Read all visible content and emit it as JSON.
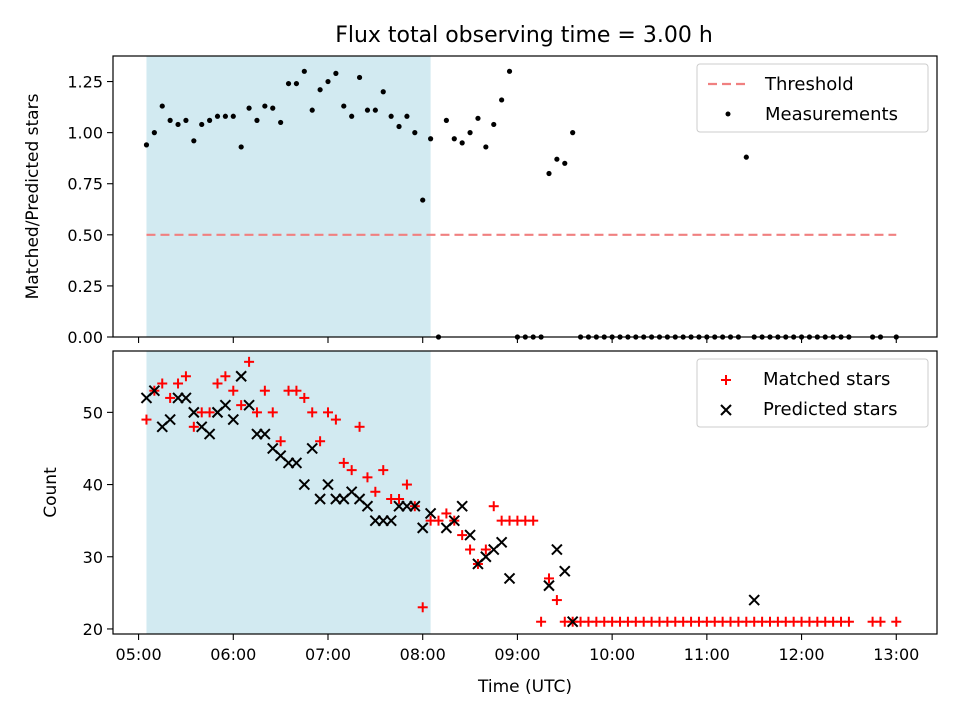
{
  "chart_data": {
    "title": "Flux total observing time = 3.00 h",
    "xlabel": "Time (UTC)",
    "x_range_hours": [
      4.73,
      13.43
    ],
    "x_ticks": [
      "05:00",
      "06:00",
      "07:00",
      "08:00",
      "09:00",
      "10:00",
      "11:00",
      "12:00",
      "13:00"
    ],
    "shaded_span": {
      "start": "05:05",
      "end": "08:05",
      "color": "#add8e6"
    },
    "panels": [
      {
        "type": "scatter",
        "ylabel": "Matched/Predicted stars",
        "ylim": [
          0,
          1.375
        ],
        "yticks": [
          "0.00",
          "0.25",
          "0.50",
          "0.75",
          "1.00",
          "1.25"
        ],
        "threshold": {
          "name": "Threshold",
          "value": 0.5,
          "x_start": "05:05",
          "x_end": "13:00",
          "color": "#f08080"
        },
        "legend": {
          "position": "top-right",
          "entries": [
            "Threshold",
            "Measurements"
          ]
        },
        "series": [
          {
            "name": "Measurements",
            "color": "#000000",
            "x": [
              "05:05",
              "05:10",
              "05:15",
              "05:20",
              "05:25",
              "05:30",
              "05:35",
              "05:40",
              "05:45",
              "05:50",
              "05:55",
              "06:00",
              "06:05",
              "06:10",
              "06:15",
              "06:20",
              "06:25",
              "06:30",
              "06:35",
              "06:40",
              "06:45",
              "06:50",
              "06:55",
              "07:00",
              "07:05",
              "07:10",
              "07:15",
              "07:20",
              "07:25",
              "07:30",
              "07:35",
              "07:40",
              "07:45",
              "07:50",
              "07:55",
              "08:00",
              "08:05",
              "08:10",
              "08:15",
              "08:20",
              "08:25",
              "08:30",
              "08:35",
              "08:40",
              "08:45",
              "08:50",
              "08:55",
              "09:00",
              "09:05",
              "09:10",
              "09:15",
              "09:20",
              "09:25",
              "09:30",
              "09:35",
              "09:40",
              "09:45",
              "09:50",
              "09:55",
              "10:00",
              "10:05",
              "10:10",
              "10:15",
              "10:20",
              "10:25",
              "10:30",
              "10:35",
              "10:40",
              "10:45",
              "10:50",
              "10:55",
              "11:00",
              "11:05",
              "11:10",
              "11:15",
              "11:20",
              "11:25",
              "11:30",
              "11:35",
              "11:40",
              "11:45",
              "11:50",
              "11:55",
              "12:00",
              "12:05",
              "12:10",
              "12:15",
              "12:20",
              "12:25",
              "12:30",
              "12:45",
              "12:50",
              "13:00"
            ],
            "y": [
              0.94,
              1.0,
              1.13,
              1.06,
              1.04,
              1.06,
              0.96,
              1.04,
              1.06,
              1.08,
              1.08,
              1.08,
              0.93,
              1.12,
              1.06,
              1.13,
              1.12,
              1.05,
              1.24,
              1.24,
              1.3,
              1.11,
              1.21,
              1.25,
              1.29,
              1.13,
              1.08,
              1.27,
              1.11,
              1.11,
              1.2,
              1.08,
              1.03,
              1.08,
              1.0,
              0.67,
              0.97,
              0.0,
              1.06,
              0.97,
              0.95,
              1.0,
              1.07,
              0.93,
              1.04,
              1.16,
              1.3,
              0.0,
              0.0,
              0.0,
              0.0,
              0.8,
              0.87,
              0.85,
              1.0,
              0.0,
              0.0,
              0.0,
              0.0,
              0.0,
              0.0,
              0.0,
              0.0,
              0.0,
              0.0,
              0.0,
              0.0,
              0.0,
              0.0,
              0.0,
              0.0,
              0.0,
              0.0,
              0.0,
              0.0,
              0.0,
              0.88,
              0.0,
              0.0,
              0.0,
              0.0,
              0.0,
              0.0,
              0.0,
              0.0,
              0.0,
              0.0,
              0.0,
              0.0,
              0.0,
              0.0,
              0.0,
              0.0
            ]
          }
        ]
      },
      {
        "type": "scatter",
        "ylabel": "Count",
        "ylim": [
          19.3,
          58.5
        ],
        "yticks": [
          "20",
          "30",
          "40",
          "50"
        ],
        "legend": {
          "position": "top-right",
          "entries": [
            "Matched stars",
            "Predicted stars"
          ]
        },
        "series": [
          {
            "name": "Matched stars",
            "marker": "+",
            "color": "#ff0000",
            "x": [
              "05:05",
              "05:10",
              "05:15",
              "05:20",
              "05:25",
              "05:30",
              "05:35",
              "05:40",
              "05:45",
              "05:50",
              "05:55",
              "06:00",
              "06:05",
              "06:10",
              "06:15",
              "06:20",
              "06:25",
              "06:30",
              "06:35",
              "06:40",
              "06:45",
              "06:50",
              "06:55",
              "07:00",
              "07:05",
              "07:10",
              "07:15",
              "07:20",
              "07:25",
              "07:30",
              "07:35",
              "07:40",
              "07:45",
              "07:50",
              "07:55",
              "08:00",
              "08:05",
              "08:10",
              "08:15",
              "08:20",
              "08:25",
              "08:30",
              "08:35",
              "08:40",
              "08:45",
              "08:50",
              "08:55",
              "09:00",
              "09:05",
              "09:10",
              "09:15",
              "09:20",
              "09:25",
              "09:30",
              "09:35",
              "09:40",
              "09:45",
              "09:50",
              "09:55",
              "10:00",
              "10:05",
              "10:10",
              "10:15",
              "10:20",
              "10:25",
              "10:30",
              "10:35",
              "10:40",
              "10:45",
              "10:50",
              "10:55",
              "11:00",
              "11:05",
              "11:10",
              "11:15",
              "11:20",
              "11:25",
              "11:30",
              "11:35",
              "11:40",
              "11:45",
              "11:50",
              "11:55",
              "12:00",
              "12:05",
              "12:10",
              "12:15",
              "12:20",
              "12:25",
              "12:30",
              "12:45",
              "12:50",
              "13:00"
            ],
            "y": [
              49,
              53,
              54,
              52,
              54,
              55,
              48,
              50,
              50,
              54,
              55,
              53,
              51,
              57,
              50,
              53,
              50,
              46,
              53,
              53,
              52,
              50,
              46,
              50,
              49,
              43,
              42,
              48,
              41,
              39,
              42,
              38,
              38,
              40,
              37,
              23,
              35,
              35,
              36,
              35,
              33,
              31,
              29,
              31,
              37,
              35,
              35,
              35,
              35,
              35,
              21,
              27,
              24,
              21,
              21,
              21,
              21,
              21,
              21,
              21,
              21,
              21,
              21,
              21,
              21,
              21,
              21,
              21,
              21,
              21,
              21,
              21,
              21,
              21,
              21,
              21,
              21,
              21,
              21,
              21,
              21,
              21,
              21,
              21,
              21,
              21,
              21,
              21,
              21,
              21,
              21,
              21,
              21
            ]
          },
          {
            "name": "Predicted stars",
            "marker": "x",
            "color": "#000000",
            "x": [
              "05:05",
              "05:10",
              "05:15",
              "05:20",
              "05:25",
              "05:30",
              "05:35",
              "05:40",
              "05:45",
              "05:50",
              "05:55",
              "06:00",
              "06:05",
              "06:10",
              "06:15",
              "06:20",
              "06:25",
              "06:30",
              "06:35",
              "06:40",
              "06:45",
              "06:50",
              "06:55",
              "07:00",
              "07:05",
              "07:10",
              "07:15",
              "07:20",
              "07:25",
              "07:30",
              "07:35",
              "07:40",
              "07:45",
              "07:50",
              "07:55",
              "08:00",
              "08:05",
              "08:15",
              "08:20",
              "08:25",
              "08:30",
              "08:35",
              "08:40",
              "08:45",
              "08:50",
              "08:55",
              "09:20",
              "09:25",
              "09:30",
              "09:35",
              "11:30"
            ],
            "y": [
              52,
              53,
              48,
              49,
              52,
              52,
              50,
              48,
              47,
              50,
              51,
              49,
              55,
              51,
              47,
              47,
              45,
              44,
              43,
              43,
              40,
              45,
              38,
              40,
              38,
              38,
              39,
              38,
              37,
              35,
              35,
              35,
              37,
              37,
              37,
              34,
              36,
              34,
              35,
              37,
              33,
              29,
              30,
              31,
              32,
              27,
              26,
              31,
              28,
              21,
              24
            ]
          }
        ]
      }
    ]
  }
}
